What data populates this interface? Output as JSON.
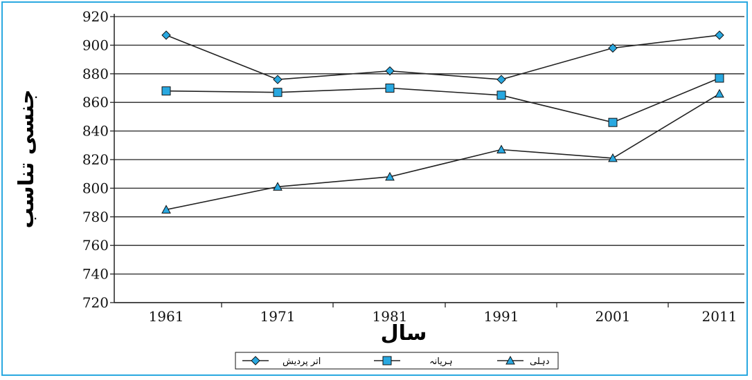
{
  "chart_data": {
    "type": "line",
    "xlabel": "سال",
    "ylabel": "جنسی تناسب",
    "ylim": [
      720,
      920
    ],
    "yticks": [
      720,
      740,
      760,
      780,
      800,
      820,
      840,
      860,
      880,
      900,
      920
    ],
    "categories": [
      "1961",
      "1971",
      "1981",
      "1991",
      "2001",
      "2011"
    ],
    "grid": true,
    "legend_position": "bottom",
    "series": [
      {
        "name": "اتر پردیش",
        "marker": "diamond",
        "values": [
          907,
          876,
          882,
          876,
          898,
          907
        ]
      },
      {
        "name": "ہریانہ",
        "marker": "square",
        "values": [
          868,
          867,
          870,
          865,
          846,
          877
        ]
      },
      {
        "name": "دہلی",
        "marker": "triangle",
        "values": [
          785,
          801,
          808,
          827,
          821,
          866
        ]
      }
    ]
  },
  "colors": {
    "frame": "#29a8e0",
    "marker_fill": "#29a8e0",
    "line": "#222222",
    "grid": "#222222"
  }
}
